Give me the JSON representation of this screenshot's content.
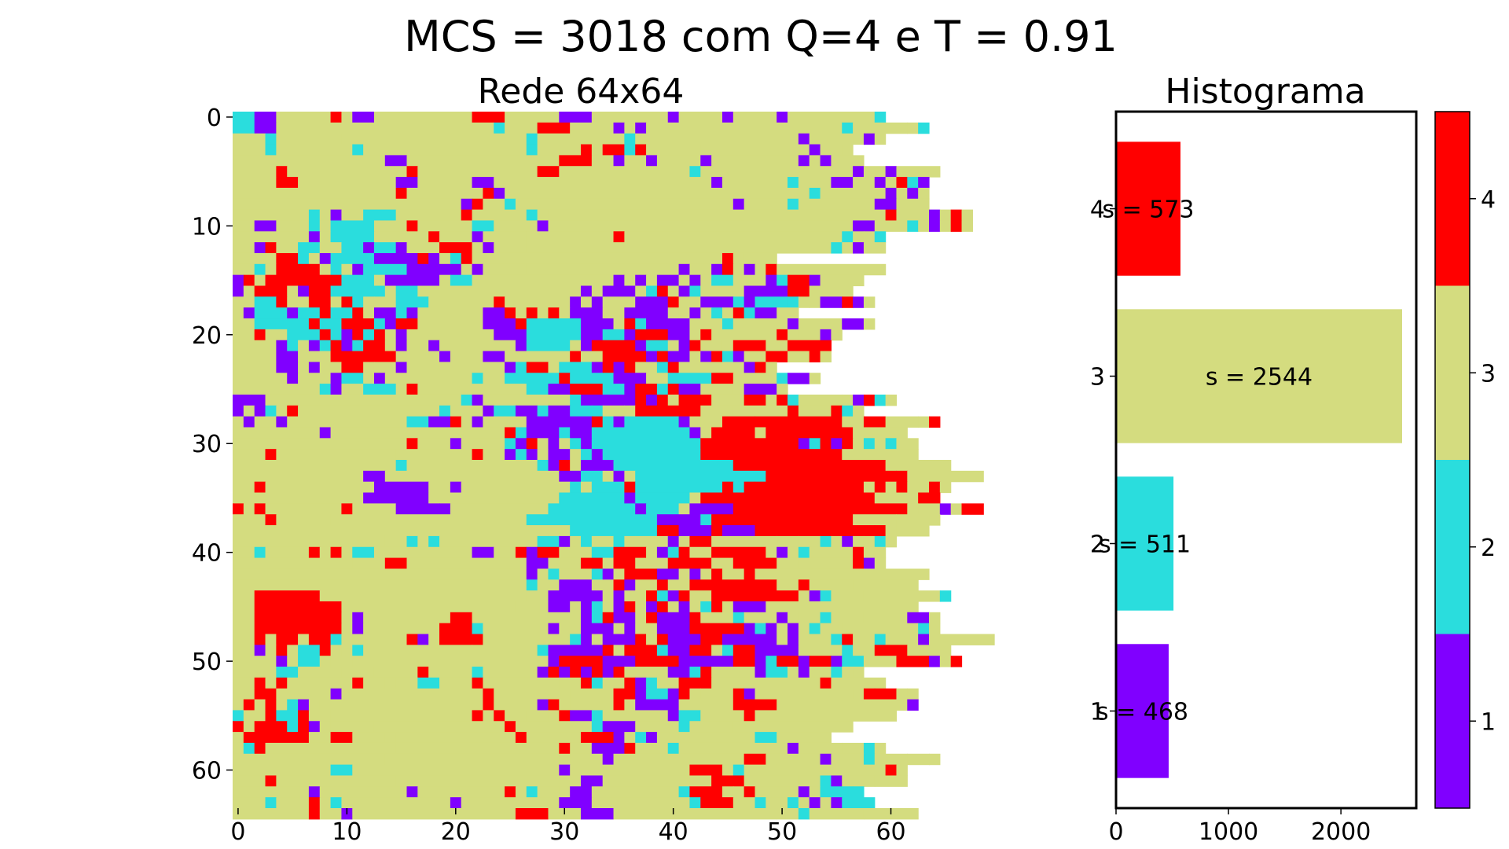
{
  "title": "MCS = 3018 com Q=4 e T = 0.91",
  "chart_data": [
    {
      "type": "heatmap",
      "title": "Rede 64x64",
      "xlabel": "",
      "ylabel": "",
      "xlim": [
        0,
        64
      ],
      "ylim": [
        64,
        0
      ],
      "x_ticks": [
        0,
        10,
        20,
        30,
        40,
        50,
        60
      ],
      "y_ticks": [
        0,
        10,
        20,
        30,
        40,
        50,
        60
      ],
      "grid": false,
      "states": [
        1,
        2,
        3,
        4
      ],
      "colors": {
        "1": "#8000ff",
        "2": "#2adddd",
        "3": "#d4dc7f",
        "4": "#ff0000"
      },
      "rows_rle": [
        "2:2,1:2,3:5,4:1,3:1,1:2,3:8,3:1,4:3,3:5,1:3,3:7,1:1,3:4,1:1,3:4,1:1,3:8,2:1",
        "2:2,1:2,3:20,2:1,3:3,4:3,3:4,1:1,3:1,1:1,3:18,2:1,3:5,3:1,2:1",
        "3:3,2:1,3:6,3:17,2:1,3:8,2:1,3:15,1:1,3:4,3:1,1:1,3:1",
        "3:3,2:1,3:7,2:1,3:15,2:1,3:4,4:1,3:1,4:2,2:1,4:1,3:5,3:5,3:5,1:1,3:2,3:1",
        "3:14,1:2,3:14,4:2,4:1,3:2,1:1,3:2,1:1,3:4,1:1,3:8,1:1,3:1,1:1,3:3",
        "3:4,4:1,3:11,4:1,3:11,4:2,3:12,2:1,3:14,1:1,3:2,1:1,3:4",
        "3:4,4:2,3:9,1:2,3:5,1:2,3:20,1:1,3:6,2:1,3:3,1:2,3:2,1:1,3:1,4:1,2:1,1:1",
        "3:15,4:1,3:7,4:1,1:1,3:28,2:1,3:6,1:1,3:1,1:1,3:1",
        "3:21,1:1,4:1,3:2,2:1,3:20,1:1,3:4,2:1,3:7,1:2,3:3",
        "3:7,2:1,3:1,1:1,3:2,2:3,3:6,4:1,3:2,3:3,2:1,3:1,3:31,4:1,3:3,1:1,3:1,4:1,3:1",
        "3:2,1:2,3:3,2:1,3:1,2:4,3:3,4:1,3:3,3:2,2:2,3:4,1:1,3:22,3:6,1:2,3:3,2:1,3:1,1:1,3:1,4:1,3:1",
        "3:7,1:1,3:1,2:4,3:3,3:1,3:1,4:1,3:1,3:2,1:1,3:2,3:2,3:8,4:1,3:18,3:2,2:1,3:1,3:1,2:1",
        "3:2,1:1,4:1,3:2,2:2,3:1,3:1,2:2,1:1,2:2,1:1,3:3,4:3,3:1,1:1,3:3,3:1,3:27,2:1,3:1,1:1,3:2",
        "3:4,4:2,2:1,3:1,1:1,2:4,1:4,4:1,1:1,3:1,2:1,4:1,3:23,4:1,3:1,3:3",
        "3:2,2:1,3:1,4:4,3:1,2:1,3:1,1:1,2:4,1:5,3:1,1:1,3:4,3:14,1:1,3:2,1:1,4:1,3:1,1:1,3:1,4:1,3:10",
        "1:1,4:1,3:1,4:7,2:3,3:1,1:5,3:1,2:2,3:1,3:12,1:1,3:1,1:1,3:1,1:2,3:1,1:1,3:1,2:2,3:3,1:1,2:1,4:2,1:1,3:4",
        "1:1,3:1,4:3,3:1,1:1,4:2,2:3,2:1,2:1,3:1,2:2,3:3,3:12,1:1,3:1,1:3,3:1,2:1,4:1,3:1,1:1,2:1,3:3,3:1,1:2,1:2,4:2,3:4",
        "3:2,2:2,4:1,3:2,4:2,3:1,4:1,2:1,3:1,3:2,2:3,3:1,3:5,4:1,3:6,1:1,3:1,1:1,3:3,1:3,4:1,3:2,1:3,2:1,1:1,2:3,2:1,3:1,3:1,1:2,4:1,1:1,3:1",
        "3:1,1:1,2:3,1:1,2:2,4:1,2:2,4:1,3:1,1:2,2:1,1:1,3:2,3:4,1:2,4:1,3:1,4:1,3:1,4:1,3:1,1:3,3:2,1:4,3:1,3:1,1:1,3:1,2:1,3:1,4:1,2:1,1:2,3:2",
        "3:2,2:5,4:1,2:2,4:3,2:1,1:1,4:2,3:6,1:3,4:1,2:5,1:3,3:1,4:1,2:1,1:4,3:3,2:1,3:5,1:1,3:2,3:2,1:2,3:1",
        "3:2,4:1,3:2,2:3,4:1,2:1,1:1,4:1,2:1,4:1,3:1,1:1,3:2,3:6,1:3,2:5,1:2,2:2,1:1,4:3,1:2,3:1,4:1,3:6,4:1,3:1,3:2,1:1,3:1",
        "3:4,1:1,2:1,3:1,1:1,2:1,4:1,1:1,2:1,4:2,3:1,1:1,3:2,1:1,3:7,1:1,2:4,3:1,1:1,4:4,1:1,2:2,3:1,1:1,4:1,3:2,3:1,4:3,3:2,4:4",
        "3:4,1:2,3:3,4:6,3:2,3:2,1:1,3:3,1:1,1:1,3:6,4:1,3:2,4:4,1:1,4:1,1:2,3:1,1:1,4:1,2:1,1:1,3:2,4:2,3:2,4:1,3:1",
        "3:4,1:2,3:1,1:1,3:2,4:2,3:1,3:2,1:1,3:9,1:1,2:1,4:2,3:1,2:3,1:1,4:1,1:1,4:1,3:2,2:1,4:1,3:6,1:1,4:1,3:1",
        "3:5,1:1,3:3,1:1,2:2,3:1,1:1,3:8,2:1,3:2,2:5,4:1,2:4,1:3,3:2,2:4,4:2,3:4,2:1,1:2,3:1",
        "3:8,2:1,1:1,3:2,2:3,3:1,4:1,3:10,2:2,1:2,4:3,2:2,1:1,4:2,2:1,4:1,1:2,3:3,3:1,1:3,3:1",
        "1:3,3:15,3:2,3:1,2:1,1:1,3:5,3:1,3:2,2:1,1:5,4:1,1:1,4:1,3:1,4:3,3:3,4:2,3:1,4:1,2:1,3:4,3:1,1:1,4:1,2:1,3:1",
        "1:1,3:1,1:1,2:1,3:1,4:1,3:12,3:1,2:1,3:2,3:1,1:1,2:2,1:2,2:1,1:2,2:2,2:1,3:2,3:1,4:6,3:3,3:5,4:1,3:3,4:1,2:1,3:1",
        "3:1,1:1,3:2,1:1,3:11,2:2,1:2,4:1,3:1,1:1,3:2,3:2,1:6,4:1,2:1,1:1,2:5,1:1,3:1,3:2,4:3,4:7,4:1,3:1,3:1,4:2,3:3,3:1,4:1",
        "3:8,1:1,3:8,3:1,3:3,3:4,4:1,2:1,1:3,2:1,1:2,2:9,1:1,3:1,4:4,3:1,4:4,4:1,4:2,4:1,3:5",
        "3:16,4:1,3:3,1:1,3:4,2:1,1:1,4:1,3:1,1:1,3:1,2:1,1:1,2:10,4:3,4:6,1:1,2:1,4:1,1:1,4:1,3:1,2:1,3:1,2:1,3:2",
        "3:3,4:1,3:11,3:7,4:1,3:2,1:1,2:1,1:1,3:1,1:2,3:1,2:1,1:1,2:9,4:12,4:1,3:7",
        "3:15,2:1,3:7,3:5,2:1,1:1,4:1,3:1,1:3,2:11,4:12,4:2,3:6",
        "3:12,1:2,3:16,1:2,2:2,3:1,1:1,3:1,2:12,4:12,4:1,3:7",
        "3:2,4:1,3:10,1:5,3:2,1:1,3:10,2:1,3:1,2:3,4:1,2:8,4:1,2:1,4:1,4:10,3:1,4:1,3:1,4:1,3:2,4:1,3:1",
        "3:12,1:6,3:12,2:6,1:1,2:5,3:1,4:3,4:13,3:2,3:2,4:1,4:1",
        "4:1,3:1,4:1,3:7,4:1,3:1,3:3,1:4,1:1,3:9,2:8,1:1,2:3,3:1,1:4,4:16,3:1,3:2,1:1,3:1,4:2",
        "3:3,4:1,3:5,3:18,2:12,1:4,2:1,4:13,3:4,3:4",
        "3:7,3:24,2:8,4:2,1:3,4:1,1:3,4:11,4:1,3:1,3:3",
        "3:3,3:11,3:2,2:1,3:1,2:1,3:4,3:5,2:1,2:1,1:1,3:1,2:1,3:2,2:1,3:1,3:3,1:1,3:1,4:1,4:1,3:6,3:2,3:2,2:1,3:1,1:1,3:1,3:1,2:1,3:1",
        "3:2,2:1,3:4,4:1,3:1,4:1,3:1,2:2,3:9,1:2,3:2,4:1,1:1,4:2,3:3,2:2,4:3,3:1,1:1,2:1,4:1,3:2,4:5,3:1,1:1,3:1,2:1,3:1,3:3,4:1,3:1,3:1",
        "3:11,3:3,4:2,3:11,1:2,3:3,4:2,3:1,4:2,3:2,3:1,4:4,3:2,4:4,3:2,3:5,4:1,1:1,3:1",
        "3:27,1:1,3:1,2:1,3:3,2:1,1:1,3:1,4:3,1:2,3:1,1:1,3:1,4:1,3:2,4:1,3:5,3:11",
        "3:27,2:1,3:2,1:3,3:2,4:1,1:1,3:2,4:1,3:2,4:8,3:2,4:1,3:4,3:6",
        "3:2,4:6,3:19,3:2,1:5,3:1,1:1,3:2,4:1,2:1,1:1,4:1,3:2,4:8,3:1,1:1,2:1,3:3,3:7,2:1",
        "3:2,4:8,3:8,3:8,3:3,1:2,3:1,1:1,2:1,3:1,1:1,4:1,3:1,1:1,4:1,3:1,1:1,3:1,2:1,4:1,3:1,1:1,1:2,3:14",
        "3:2,4:8,3:1,1:1,3:8,4:2,3:2,3:8,1:1,2:1,4:1,1:2,3:1,4:1,1:3,4:1,3:3,2:1,3:1,3:2,1:1,3:1,3:2,2:1,3:3,3:4,1:2,3:1",
        "3:2,4:8,3:1,1:1,3:7,4:3,2:1,3:6,1:1,3:2,1:3,3:1,1:1,3:2,1:3,4:5,1:1,2:1,1:1,3:1,1:1,3:1,2:1,3:1,3:1,3:7,2:1,3:1",
        "3:2,4:1,3:1,4:2,3:1,4:2,2:1,3:1,3:5,4:1,1:1,3:1,4:4,3:8,2:1,1:1,3:1,1:1,1:2,4:1,3:1,4:1,1:3,4:2,1:5,3:1,1:1,3:3,2:1,4:1,3:2,2:1,3:3,1:1,3:6",
        "3:2,1:1,3:1,4:1,3:1,2:2,4:1,3:1,3:1,2:1,3:10,3:6,2:1,1:5,4:1,3:1,4:3,2:1,1:2,4:2,3:1,2:1,4:2,1:3,1:1,3:2,3:2,2:1,3:2,4:3,3:4",
        "3:4,1:1,3:1,2:2,3:1,3:2,3:1,3:17,1:1,4:4,1:3,4:4,1:5,4:2,1:1,2:1,4:2,1:1,4:2,1:1,2:2,3:3,4:3,1:1,3:1,4:1",
        "3:4,2:2,3:1,3:3,3:3,3:4,4:1,3:4,2:1,3:5,1:1,4:1,1:1,4:1,1:1,4:1,1:1,4:1,3:2,3:2,1:2,2:1,4:1,3:4,1:1,2:2,3:1,1:1,3:2,2:1,3:1,3:1",
        "3:2,4:1,3:1,4:1,3:1,3:5,4:1,3:2,3:1,3:2,2:2,3:3,4:1,3:7,3:2,4:1,2:1,3:2,4:1,1:1,2:1,3:1,3:1,4:3,3:5,3:5,4:1,3:5",
        "3:2,4:2,3:1,3:2,3:2,1:1,3:6,3:6,3:1,4:1,3:7,3:2,3:2,4:2,1:1,2:2,1:1,4:1,3:1,3:3,4:1,1:1,3:9,3:1,4:1,4:2,3:1,3:1",
        "3:1,4:1,3:1,4:1,3:1,2:1,1:1,3:1,3:15,4:1,3:4,1:1,4:1,3:1,3:4,4:1,3:1,1:4,3:5,4:4,3:12,1:1",
        "2:1,3:2,4:1,2:2,4:1,3:2,3:11,3:2,4:1,3:1,4:1,3:2,3:2,3:1,4:1,1:2,2:1,3:6,1:1,2:2,3:4,4:1,3:5,3:8",
        "4:1,3:1,4:3,2:1,4:1,1:1,3:1,3:4,3:5,3:3,3:4,4:1,3:7,2:1,1:3,3:4,2:1,3:4,3:2,3:2,3:1,3:6",
        "3:1,4:6,3:2,4:2,3:3,3:1,3:6,3:5,4:1,3:5,4:3,1:1,3:1,2:1,1:1,3:2,3:7,2:2,3:4,3:1",
        "3:1,2:1,4:1,3:12,3:1,3:14,4:1,3:2,1:3,4:1,3:3,2:1,3:7,3:3,1:1,3:2,3:1,3:1,3:2,2:1,3:1",
        "3:3,3:11,3:17,3:3,1:1,3:3,3:9,4:2,3:5,1:1,3:3,2:1,3:3,3:2,3:1",
        "3:9,2:2,3:9,3:10,1:1,3:11,4:3,3:1,2:1,3:3,3:10,4:1,3:1",
        "3:3,4:1,3:11,3:17,1:2,3:10,4:3,3:5,3:2,2:1,1:1,3:3,3:3",
        "3:7,1:1,3:8,1:1,3:4,3:4,4:1,3:1,2:1,3:2,3:1,1:2,3:8,2:1,4:3,3:1,3:1,4:1,3:3,3:1,1:1,3:1,2:3,2:1",
        "3:3,2:1,3:3,4:1,3:1,2:1,3:10,1:1,3:1,3:8,1:3,3:9,2:1,4:3,3:2,2:1,3:2,2:1,3:1,1:1,3:1,1:1,2:3",
        "3:7,4:1,3:2,1:1,3:15,4:3,3:3,1:3,3:15,3:2,2:1,3:5,3:5"
      ]
    },
    {
      "type": "bar",
      "orientation": "horizontal",
      "title": "Histograma",
      "xlabel": "",
      "ylabel": "",
      "categories": [
        1,
        2,
        3,
        4
      ],
      "values": [
        468,
        511,
        2544,
        573
      ],
      "data_labels": [
        "s = 468",
        "s = 511",
        "s = 2544",
        "s = 573"
      ],
      "xlim": [
        0,
        2670
      ],
      "ylim": [
        0.42,
        4.58
      ],
      "x_ticks": [
        0,
        1000,
        2000
      ],
      "y_ticks": [
        1,
        2,
        3,
        4
      ],
      "grid": false,
      "bar_colors": [
        "#8000ff",
        "#2adddd",
        "#d4dc7f",
        "#ff0000"
      ]
    }
  ],
  "colorbar": {
    "ticks": [
      1,
      2,
      3,
      4
    ],
    "range": [
      0.5,
      4.5
    ],
    "colors": [
      "#8000ff",
      "#2adddd",
      "#d4dc7f",
      "#ff0000"
    ]
  }
}
